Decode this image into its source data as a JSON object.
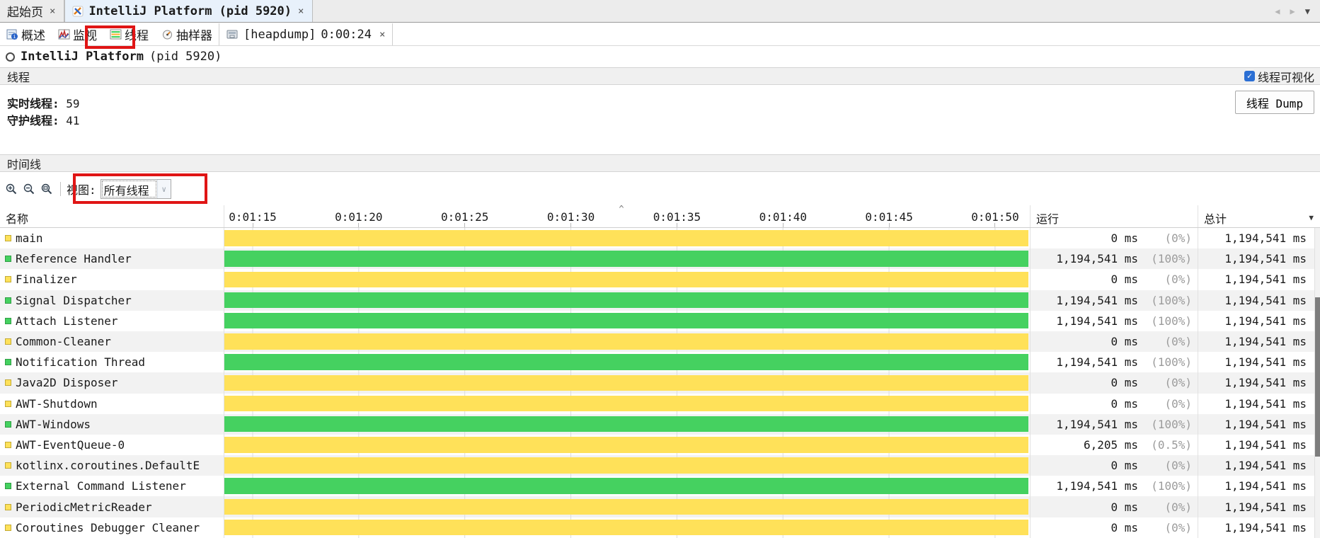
{
  "window": {
    "tabs": [
      {
        "label": "起始页",
        "close": "×"
      },
      {
        "label": "IntelliJ Platform (pid 5920)",
        "close": "×"
      }
    ],
    "tab_controls": {
      "prev": "◀",
      "next": "▶",
      "menu": "▼"
    }
  },
  "subtabs": {
    "overview": "概述",
    "monitor": "监视",
    "threads": "线程",
    "sampler": "抽样器",
    "heapdump": {
      "label": "[heapdump]",
      "time": "0:00:24",
      "close": "×"
    }
  },
  "header": {
    "title": "IntelliJ Platform",
    "pid": "(pid 5920)"
  },
  "threads_section": {
    "title": "线程",
    "visualization_label": "线程可视化",
    "visualization_checked": "✓",
    "live_label": "实时线程:",
    "live_value": "59",
    "daemon_label": "守护线程:",
    "daemon_value": "41",
    "dump_button": "线程 Dump"
  },
  "timeline_section": {
    "title": "时间线",
    "view_label": "视图:",
    "view_value": "所有线程",
    "dropdown_chevron": "∨"
  },
  "table": {
    "columns": {
      "name": "名称",
      "running": "运行",
      "total": "总计"
    },
    "ticks": [
      "0:01:15",
      "0:01:20",
      "0:01:25",
      "0:01:30",
      "0:01:35",
      "0:01:40",
      "0:01:45",
      "0:01:50"
    ],
    "caret": "^",
    "column_selector": "▼",
    "rows": [
      {
        "name": "main",
        "state": "waiting",
        "running": "0 ms",
        "running_pct": "(0%)",
        "total": "1,194,541 ms"
      },
      {
        "name": "Reference Handler",
        "state": "running",
        "running": "1,194,541 ms",
        "running_pct": "(100%)",
        "total": "1,194,541 ms"
      },
      {
        "name": "Finalizer",
        "state": "waiting",
        "running": "0 ms",
        "running_pct": "(0%)",
        "total": "1,194,541 ms"
      },
      {
        "name": "Signal Dispatcher",
        "state": "running",
        "running": "1,194,541 ms",
        "running_pct": "(100%)",
        "total": "1,194,541 ms"
      },
      {
        "name": "Attach Listener",
        "state": "running",
        "running": "1,194,541 ms",
        "running_pct": "(100%)",
        "total": "1,194,541 ms"
      },
      {
        "name": "Common-Cleaner",
        "state": "waiting",
        "running": "0 ms",
        "running_pct": "(0%)",
        "total": "1,194,541 ms"
      },
      {
        "name": "Notification Thread",
        "state": "running",
        "running": "1,194,541 ms",
        "running_pct": "(100%)",
        "total": "1,194,541 ms"
      },
      {
        "name": "Java2D Disposer",
        "state": "waiting",
        "running": "0 ms",
        "running_pct": "(0%)",
        "total": "1,194,541 ms"
      },
      {
        "name": "AWT-Shutdown",
        "state": "waiting",
        "running": "0 ms",
        "running_pct": "(0%)",
        "total": "1,194,541 ms"
      },
      {
        "name": "AWT-Windows",
        "state": "running",
        "running": "1,194,541 ms",
        "running_pct": "(100%)",
        "total": "1,194,541 ms"
      },
      {
        "name": "AWT-EventQueue-0",
        "state": "waiting",
        "running": "6,205 ms",
        "running_pct": "(0.5%)",
        "total": "1,194,541 ms"
      },
      {
        "name": "kotlinx.coroutines.DefaultE",
        "state": "waiting",
        "running": "0 ms",
        "running_pct": "(0%)",
        "total": "1,194,541 ms"
      },
      {
        "name": "External Command Listener",
        "state": "running",
        "running": "1,194,541 ms",
        "running_pct": "(100%)",
        "total": "1,194,541 ms"
      },
      {
        "name": "PeriodicMetricReader",
        "state": "waiting",
        "running": "0 ms",
        "running_pct": "(0%)",
        "total": "1,194,541 ms"
      },
      {
        "name": "Coroutines Debugger Cleaner",
        "state": "waiting",
        "running": "0 ms",
        "running_pct": "(0%)",
        "total": "1,194,541 ms"
      }
    ]
  },
  "colors": {
    "bar_running_green": "#45d160",
    "bar_waiting_yellow": "#ffe159",
    "annotation_red": "#e01515",
    "checkbox_blue": "#2b6fd4",
    "stripe_gray": "#f2f2f2",
    "active_tab_blue": "#e8f1fb"
  }
}
